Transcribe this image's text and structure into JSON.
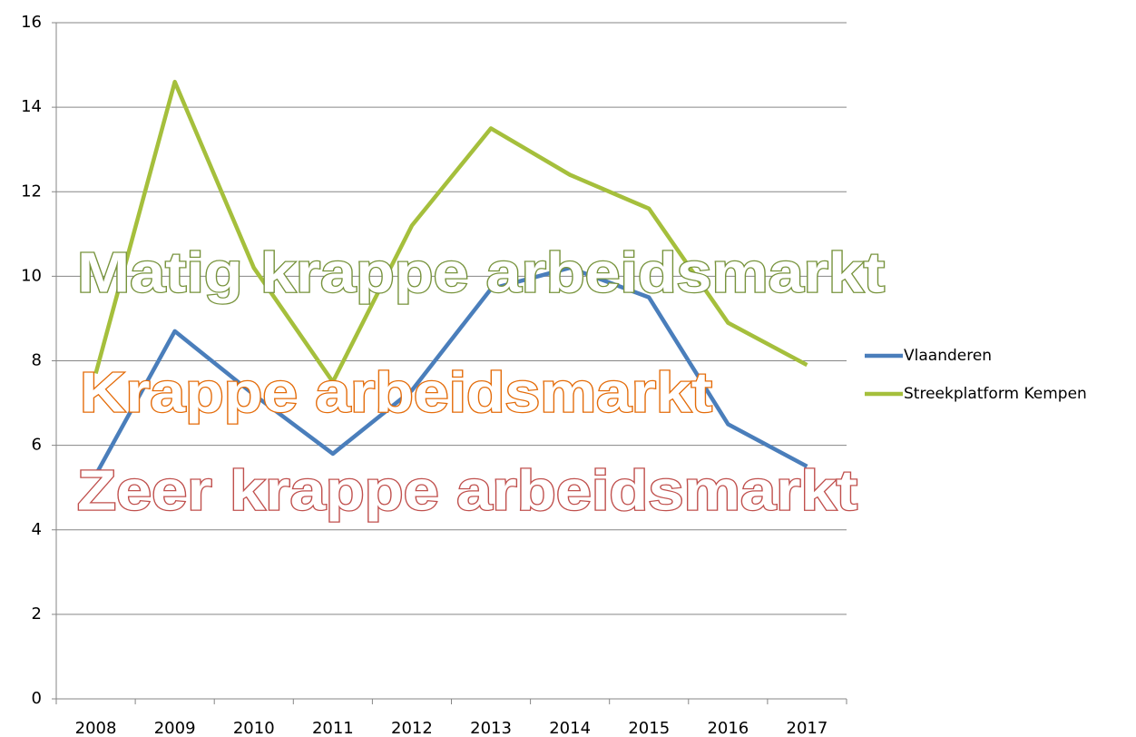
{
  "chart_data": {
    "type": "line",
    "categories": [
      "2008",
      "2009",
      "2010",
      "2011",
      "2012",
      "2013",
      "2014",
      "2015",
      "2016",
      "2017"
    ],
    "series": [
      {
        "name": "Vlaanderen",
        "color": "#4a7ebb",
        "values": [
          5.3,
          8.7,
          7.2,
          5.8,
          7.3,
          9.7,
          10.2,
          9.5,
          6.5,
          5.5
        ]
      },
      {
        "name": "Streekplatform Kempen",
        "color": "#a5bf3c",
        "values": [
          7.7,
          14.6,
          10.2,
          7.5,
          11.2,
          13.5,
          12.4,
          11.6,
          8.9,
          7.9
        ]
      }
    ],
    "ylim": [
      0,
      16
    ],
    "yticks": [
      0,
      2,
      4,
      6,
      8,
      10,
      12,
      14,
      16
    ],
    "grid": true,
    "legend": "right",
    "annotations": [
      {
        "text": "Matig krappe arbeidsmarkt",
        "color": "#77933c"
      },
      {
        "text": "Krappe arbeidsmarkt",
        "color": "#e46c0a"
      },
      {
        "text": "Zeer krappe arbeidsmarkt",
        "color": "#c0504d"
      }
    ]
  }
}
